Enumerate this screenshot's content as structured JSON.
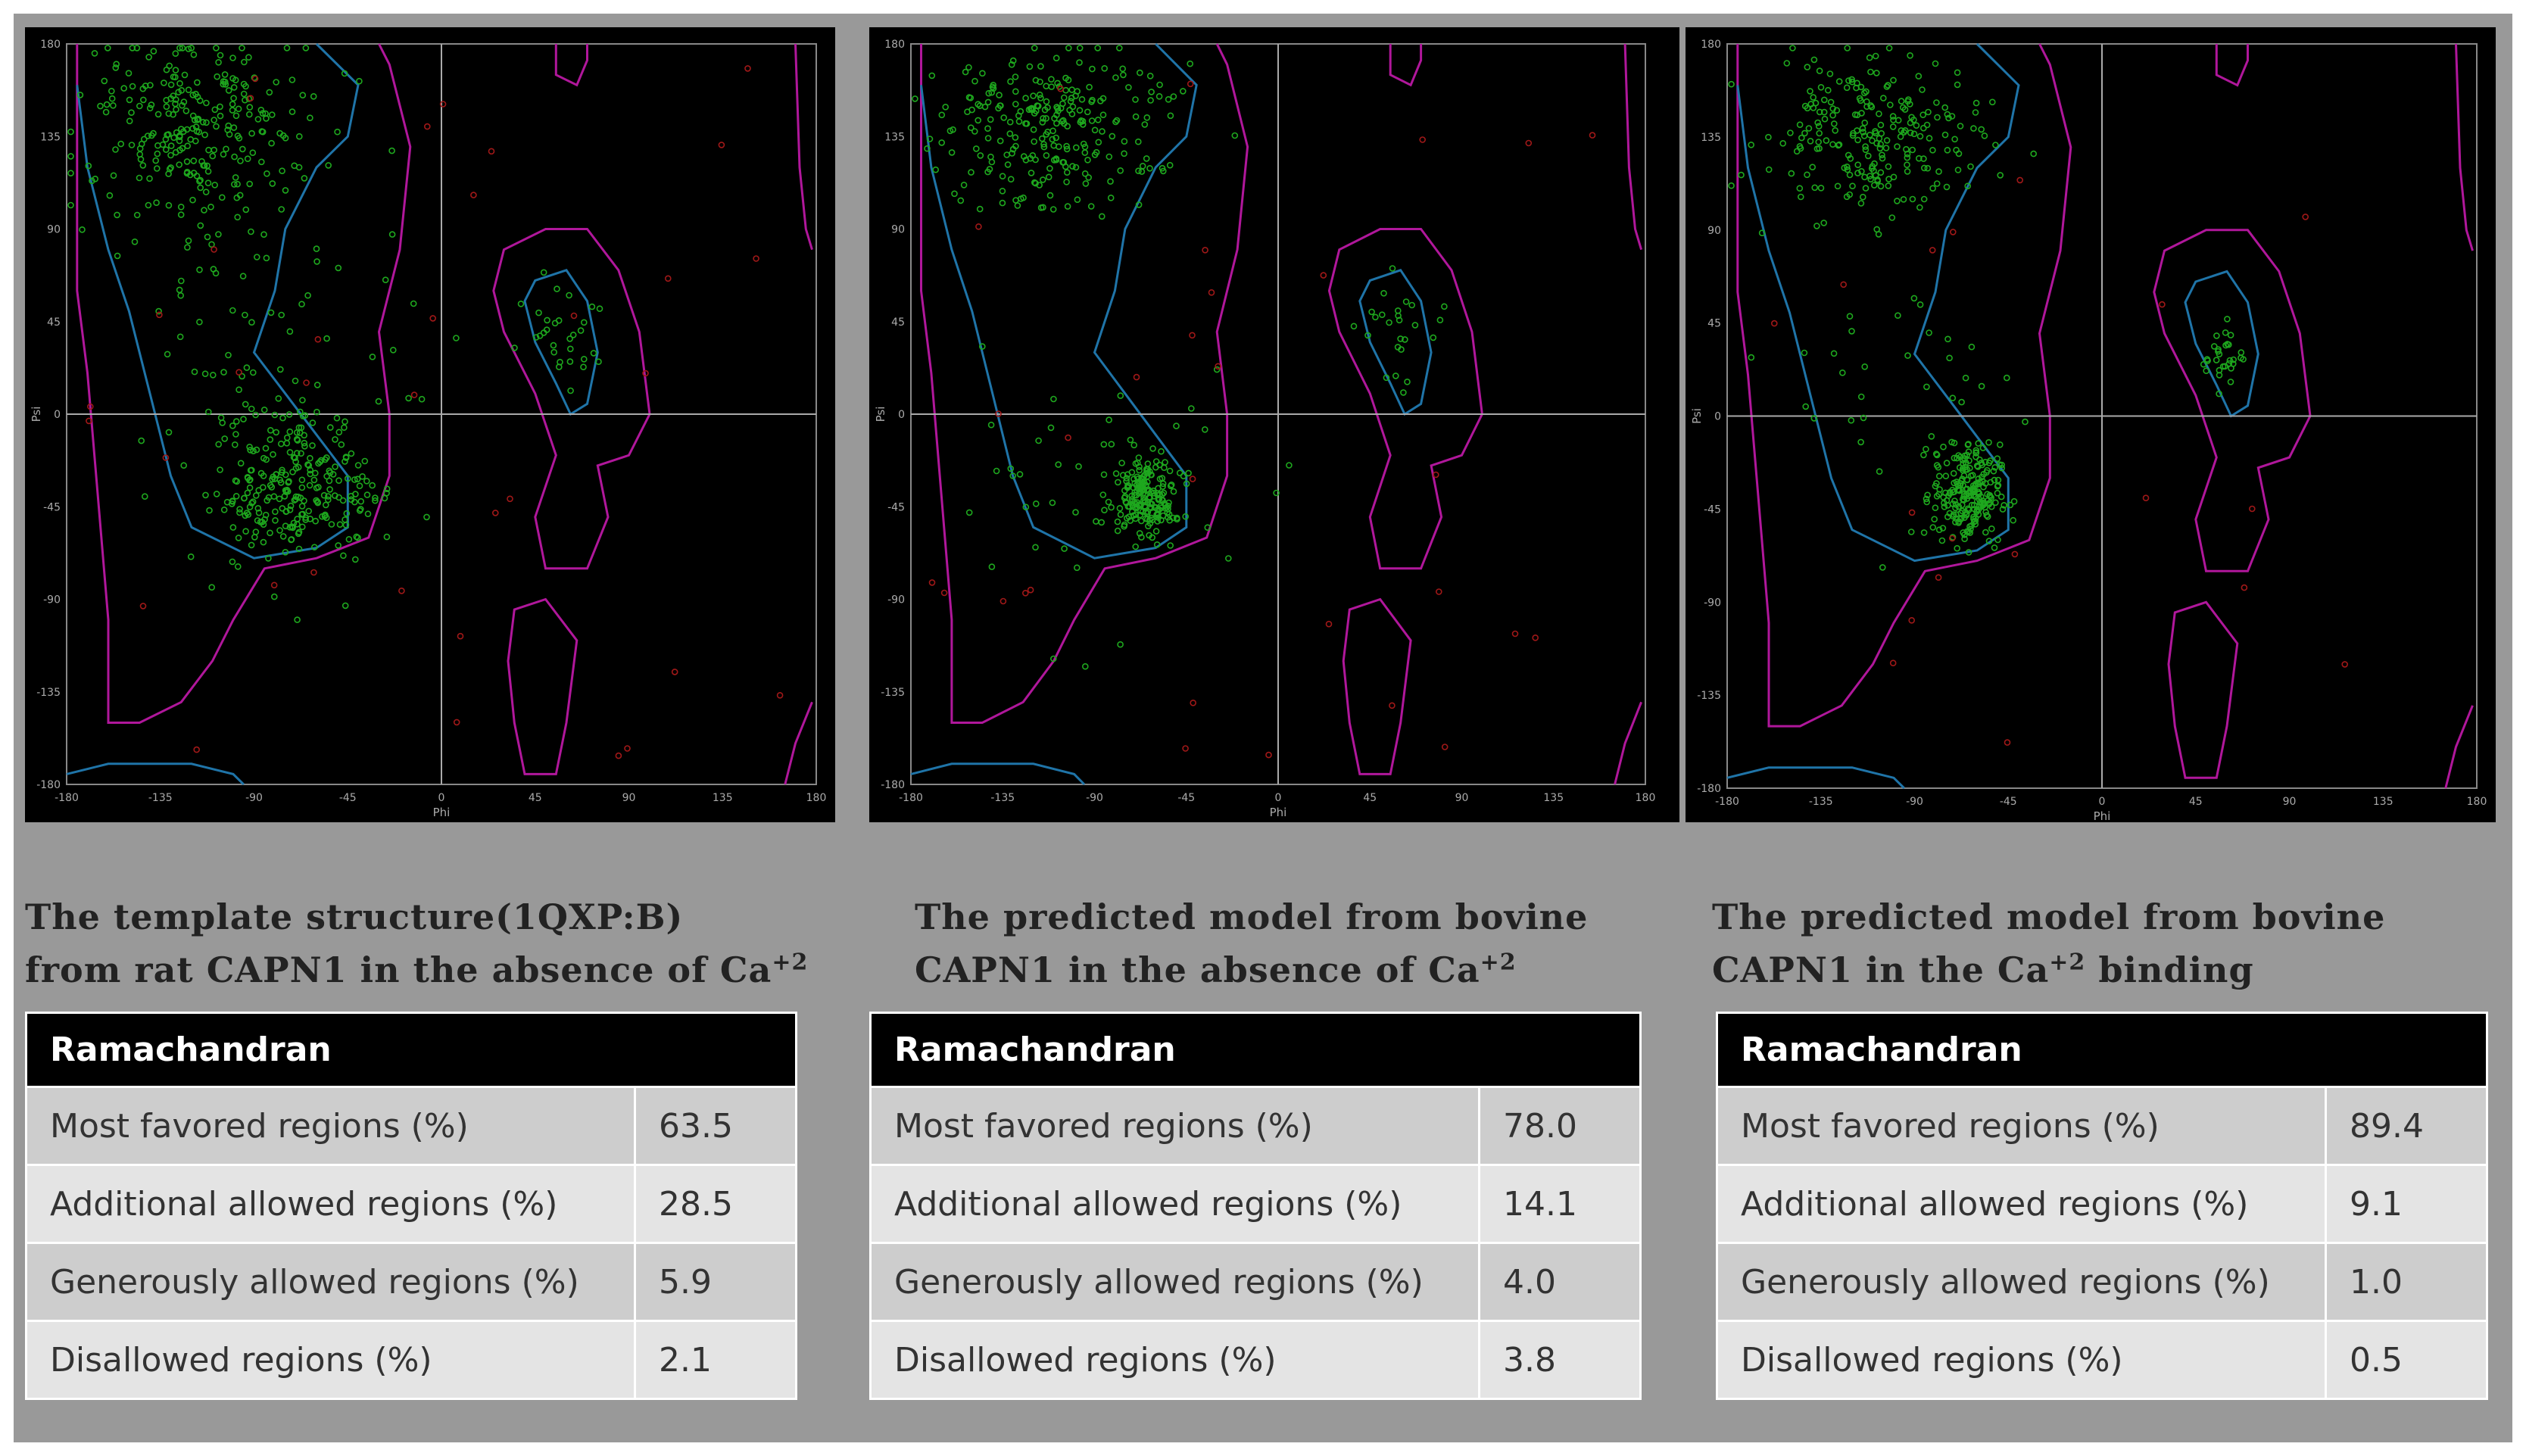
{
  "chart_data": [
    {
      "type": "scatter",
      "xlabel": "Phi",
      "ylabel": "Psi",
      "xlim": [
        -180,
        180
      ],
      "ylim": [
        -180,
        180
      ],
      "xticks": [
        "-180",
        "-135",
        "-90",
        "-45",
        "0",
        "45",
        "90",
        "135",
        "180"
      ],
      "yticks": [
        "180",
        "135",
        "90",
        "45",
        "0",
        "-45",
        "-90",
        "-135",
        "-180"
      ],
      "clusters": [
        {
          "phi": -120,
          "psi": 135,
          "spread": [
            28,
            22
          ],
          "count": 260,
          "color": "#1ea81e"
        },
        {
          "phi": -70,
          "psi": -35,
          "spread": [
            20,
            18
          ],
          "count": 260,
          "color": "#1ea81e"
        },
        {
          "phi": 60,
          "psi": 40,
          "spread": [
            10,
            14
          ],
          "count": 30,
          "color": "#1ea81e"
        },
        {
          "phi": -90,
          "psi": 40,
          "spread": [
            35,
            45
          ],
          "count": 60,
          "color": "#1ea81e"
        }
      ],
      "outliers": 35,
      "caption": {
        "line1": "The template structure(1QXP:B)",
        "line2": "from rat CAPN1 in  the absence of Ca",
        "sup": "+2",
        "tail": ""
      },
      "table": {
        "header": "Ramachandran",
        "rows": [
          {
            "label": "Most favored regions (%)",
            "value": "63.5"
          },
          {
            "label": "Additional allowed regions (%)",
            "value": "28.5"
          },
          {
            "label": "Generously   allowed regions  (%)",
            "value": "5.9"
          },
          {
            "label": "Disallowed regions (%)",
            "value": "2.1"
          }
        ]
      }
    },
    {
      "type": "scatter",
      "xlabel": "Phi",
      "ylabel": "Psi",
      "xlim": [
        -180,
        180
      ],
      "ylim": [
        -180,
        180
      ],
      "xticks": [
        "-180",
        "-135",
        "-90",
        "-45",
        "0",
        "45",
        "90",
        "135",
        "180"
      ],
      "yticks": [
        "180",
        "135",
        "90",
        "45",
        "0",
        "-45",
        "-90",
        "-135",
        "-180"
      ],
      "clusters": [
        {
          "phi": -110,
          "psi": 140,
          "spread": [
            28,
            20
          ],
          "count": 250,
          "color": "#1ea81e"
        },
        {
          "phi": -65,
          "psi": -40,
          "spread": [
            8,
            10
          ],
          "count": 200,
          "color": "#1ea81e"
        },
        {
          "phi": 60,
          "psi": 40,
          "spread": [
            10,
            16
          ],
          "count": 25,
          "color": "#1ea81e"
        },
        {
          "phi": -90,
          "psi": -30,
          "spread": [
            35,
            40
          ],
          "count": 40,
          "color": "#1ea81e"
        }
      ],
      "outliers": 30,
      "caption": {
        "line1": "The predicted model  from bovine",
        "line2": "CAPN1 in  the absence of Ca",
        "sup": "+2",
        "tail": ""
      },
      "table": {
        "header": "Ramachandran",
        "rows": [
          {
            "label": "Most favored regions (%)",
            "value": "78.0"
          },
          {
            "label": "Additional allowed regions (%)",
            "value": "14.1"
          },
          {
            "label": "Generously   allowed regions  (%)",
            "value": "4.0"
          },
          {
            "label": "Disallowed regions (%)",
            "value": "3.8"
          }
        ]
      }
    },
    {
      "type": "scatter",
      "xlabel": "Phi",
      "ylabel": "Psi",
      "xlim": [
        -180,
        180
      ],
      "ylim": [
        -180,
        180
      ],
      "xticks": [
        "-180",
        "-135",
        "-90",
        "-45",
        "0",
        "45",
        "90",
        "135",
        "180"
      ],
      "yticks": [
        "180",
        "135",
        "90",
        "45",
        "0",
        "-45",
        "-90",
        "-135",
        "-180"
      ],
      "clusters": [
        {
          "phi": -110,
          "psi": 135,
          "spread": [
            26,
            20
          ],
          "count": 230,
          "color": "#1ea81e"
        },
        {
          "phi": -65,
          "psi": -38,
          "spread": [
            8,
            12
          ],
          "count": 220,
          "color": "#1ea81e"
        },
        {
          "phi": 58,
          "psi": 30,
          "spread": [
            5,
            8
          ],
          "count": 30,
          "color": "#1ea81e"
        },
        {
          "phi": -90,
          "psi": 10,
          "spread": [
            30,
            35
          ],
          "count": 40,
          "color": "#1ea81e"
        }
      ],
      "outliers": 18,
      "caption": {
        "line1": "The predicted model  from bovine",
        "line2": "CAPN1 in  the Ca",
        "sup": "+2",
        "tail": " binding"
      },
      "table": {
        "header": "Ramachandran",
        "rows": [
          {
            "label": "Most favored regions (%)",
            "value": "89.4"
          },
          {
            "label": "Additional allowed regions (%)",
            "value": "9.1"
          },
          {
            "label": "Generously   allowed regions  (%)",
            "value": "1.0"
          },
          {
            "label": "Disallowed regions (%)",
            "value": "0.5"
          }
        ]
      }
    }
  ]
}
